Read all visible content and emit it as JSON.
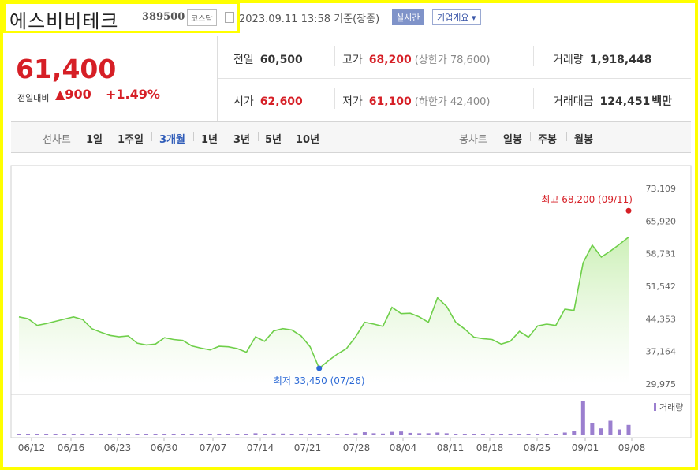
{
  "header": {
    "stock_name": "에스비비테크",
    "stock_code": "389500",
    "market": "코스닥",
    "datetime": "2023.09.11 13:58  기준(장중)",
    "realtime_label": "실시간",
    "company_info_label": "기업개요 ▾"
  },
  "price": {
    "current": "61,400",
    "change_label": "전일대비",
    "change": "▲900",
    "change_pct": "+1.49%"
  },
  "stats": {
    "prev_close_label": "전일",
    "prev_close": "60,500",
    "high_label": "고가",
    "high": "68,200",
    "upper_limit": "(상한가 78,600)",
    "volume_label": "거래량",
    "volume": "1,918,448",
    "open_label": "시가",
    "open": "62,600",
    "low_label": "저가",
    "low": "61,100",
    "lower_limit": "(하한가 42,400)",
    "amount_label": "거래대금",
    "amount": "124,451",
    "amount_unit": "백만"
  },
  "tabs": {
    "line_label": "선차트",
    "periods": [
      "1일",
      "1주일",
      "3개월",
      "1년",
      "3년",
      "5년",
      "10년"
    ],
    "active": "3개월",
    "candle_label": "봉차트",
    "candles": [
      "일봉",
      "주봉",
      "월봉"
    ]
  },
  "colors": {
    "accent_red": "#d61f26",
    "line_green": "#6fcf4a",
    "area_green": "#cdf0b8",
    "volume_purple": "#9b7fcf",
    "low_blue": "#2e6bd6"
  },
  "chart_data": {
    "type": "area",
    "y_ticks": [
      "73,109",
      "65,920",
      "58,731",
      "51,542",
      "44,353",
      "37,164",
      "29,975"
    ],
    "ylim": [
      29975,
      73109
    ],
    "x_ticks": [
      "06/12",
      "06/16",
      "06/23",
      "06/30",
      "07/07",
      "07/14",
      "07/21",
      "07/28",
      "08/04",
      "08/11",
      "08/18",
      "08/25",
      "09/01",
      "09/08"
    ],
    "grid": false,
    "prices": [
      44800,
      44400,
      42900,
      43300,
      43800,
      44300,
      44800,
      44200,
      42200,
      41400,
      40700,
      40400,
      40600,
      39000,
      38600,
      38800,
      40200,
      39800,
      39600,
      38400,
      37900,
      37500,
      38300,
      38200,
      37800,
      37000,
      40400,
      39400,
      41700,
      42200,
      41900,
      40600,
      38200,
      33450,
      35100,
      36600,
      37800,
      40400,
      43600,
      43200,
      42700,
      46900,
      45500,
      45600,
      44800,
      43600,
      49000,
      47100,
      43600,
      42100,
      40300,
      40000,
      39800,
      38800,
      39400,
      41600,
      40300,
      42800,
      43200,
      42900,
      46500,
      46200,
      56700,
      60600,
      58000,
      59300,
      60800,
      62400
    ],
    "volume": [
      0.02,
      0.02,
      0.02,
      0.02,
      0.02,
      0.02,
      0.02,
      0.02,
      0.02,
      0.02,
      0.02,
      0.02,
      0.02,
      0.02,
      0.02,
      0.02,
      0.02,
      0.02,
      0.02,
      0.02,
      0.02,
      0.02,
      0.02,
      0.02,
      0.02,
      0.02,
      0.06,
      0.04,
      0.05,
      0.05,
      0.04,
      0.03,
      0.02,
      0.02,
      0.02,
      0.02,
      0.03,
      0.06,
      0.09,
      0.06,
      0.05,
      0.1,
      0.11,
      0.07,
      0.06,
      0.06,
      0.08,
      0.06,
      0.04,
      0.03,
      0.03,
      0.03,
      0.03,
      0.03,
      0.03,
      0.03,
      0.03,
      0.03,
      0.03,
      0.03,
      0.08,
      0.13,
      1.0,
      0.35,
      0.2,
      0.42,
      0.17,
      0.3
    ],
    "max_annotation": "최고  68,200  (09/11)",
    "max_value": 68200,
    "min_annotation": "최저  33,450  (07/26)",
    "min_value": 33450,
    "min_index": 33,
    "volume_legend": "거래량"
  }
}
